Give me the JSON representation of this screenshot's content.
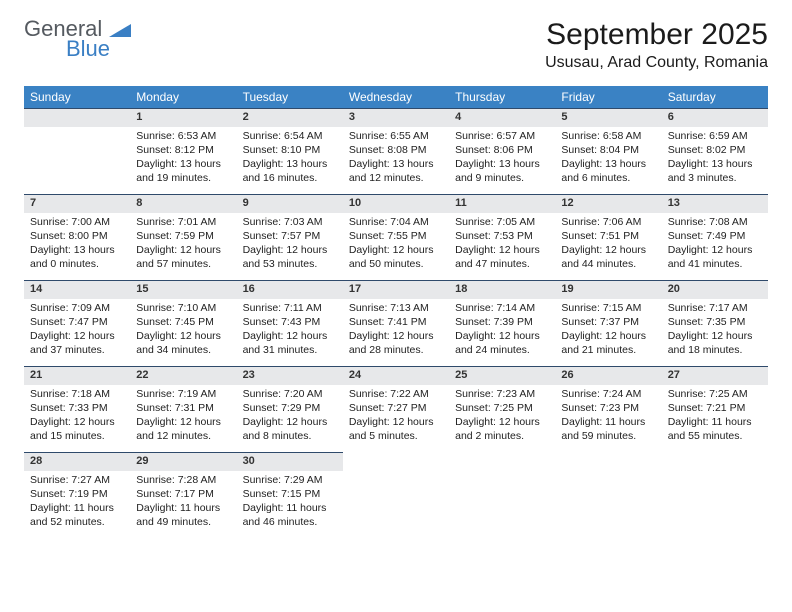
{
  "logo": {
    "general": "General",
    "blue": "Blue"
  },
  "title": "September 2025",
  "location": "Ususau, Arad County, Romania",
  "colors": {
    "header_bg": "#3a82c4",
    "header_fg": "#ffffff",
    "daynum_bg": "#e7e8ea",
    "row_divider": "#2f4a6b",
    "logo_gray": "#555a60",
    "logo_blue": "#3a7fc4"
  },
  "weekdays": [
    "Sunday",
    "Monday",
    "Tuesday",
    "Wednesday",
    "Thursday",
    "Friday",
    "Saturday"
  ],
  "weeks": [
    {
      "nums": [
        "",
        "1",
        "2",
        "3",
        "4",
        "5",
        "6"
      ],
      "cells": [
        null,
        {
          "sunrise": "Sunrise: 6:53 AM",
          "sunset": "Sunset: 8:12 PM",
          "day1": "Daylight: 13 hours",
          "day2": "and 19 minutes."
        },
        {
          "sunrise": "Sunrise: 6:54 AM",
          "sunset": "Sunset: 8:10 PM",
          "day1": "Daylight: 13 hours",
          "day2": "and 16 minutes."
        },
        {
          "sunrise": "Sunrise: 6:55 AM",
          "sunset": "Sunset: 8:08 PM",
          "day1": "Daylight: 13 hours",
          "day2": "and 12 minutes."
        },
        {
          "sunrise": "Sunrise: 6:57 AM",
          "sunset": "Sunset: 8:06 PM",
          "day1": "Daylight: 13 hours",
          "day2": "and 9 minutes."
        },
        {
          "sunrise": "Sunrise: 6:58 AM",
          "sunset": "Sunset: 8:04 PM",
          "day1": "Daylight: 13 hours",
          "day2": "and 6 minutes."
        },
        {
          "sunrise": "Sunrise: 6:59 AM",
          "sunset": "Sunset: 8:02 PM",
          "day1": "Daylight: 13 hours",
          "day2": "and 3 minutes."
        }
      ]
    },
    {
      "nums": [
        "7",
        "8",
        "9",
        "10",
        "11",
        "12",
        "13"
      ],
      "cells": [
        {
          "sunrise": "Sunrise: 7:00 AM",
          "sunset": "Sunset: 8:00 PM",
          "day1": "Daylight: 13 hours",
          "day2": "and 0 minutes."
        },
        {
          "sunrise": "Sunrise: 7:01 AM",
          "sunset": "Sunset: 7:59 PM",
          "day1": "Daylight: 12 hours",
          "day2": "and 57 minutes."
        },
        {
          "sunrise": "Sunrise: 7:03 AM",
          "sunset": "Sunset: 7:57 PM",
          "day1": "Daylight: 12 hours",
          "day2": "and 53 minutes."
        },
        {
          "sunrise": "Sunrise: 7:04 AM",
          "sunset": "Sunset: 7:55 PM",
          "day1": "Daylight: 12 hours",
          "day2": "and 50 minutes."
        },
        {
          "sunrise": "Sunrise: 7:05 AM",
          "sunset": "Sunset: 7:53 PM",
          "day1": "Daylight: 12 hours",
          "day2": "and 47 minutes."
        },
        {
          "sunrise": "Sunrise: 7:06 AM",
          "sunset": "Sunset: 7:51 PM",
          "day1": "Daylight: 12 hours",
          "day2": "and 44 minutes."
        },
        {
          "sunrise": "Sunrise: 7:08 AM",
          "sunset": "Sunset: 7:49 PM",
          "day1": "Daylight: 12 hours",
          "day2": "and 41 minutes."
        }
      ]
    },
    {
      "nums": [
        "14",
        "15",
        "16",
        "17",
        "18",
        "19",
        "20"
      ],
      "cells": [
        {
          "sunrise": "Sunrise: 7:09 AM",
          "sunset": "Sunset: 7:47 PM",
          "day1": "Daylight: 12 hours",
          "day2": "and 37 minutes."
        },
        {
          "sunrise": "Sunrise: 7:10 AM",
          "sunset": "Sunset: 7:45 PM",
          "day1": "Daylight: 12 hours",
          "day2": "and 34 minutes."
        },
        {
          "sunrise": "Sunrise: 7:11 AM",
          "sunset": "Sunset: 7:43 PM",
          "day1": "Daylight: 12 hours",
          "day2": "and 31 minutes."
        },
        {
          "sunrise": "Sunrise: 7:13 AM",
          "sunset": "Sunset: 7:41 PM",
          "day1": "Daylight: 12 hours",
          "day2": "and 28 minutes."
        },
        {
          "sunrise": "Sunrise: 7:14 AM",
          "sunset": "Sunset: 7:39 PM",
          "day1": "Daylight: 12 hours",
          "day2": "and 24 minutes."
        },
        {
          "sunrise": "Sunrise: 7:15 AM",
          "sunset": "Sunset: 7:37 PM",
          "day1": "Daylight: 12 hours",
          "day2": "and 21 minutes."
        },
        {
          "sunrise": "Sunrise: 7:17 AM",
          "sunset": "Sunset: 7:35 PM",
          "day1": "Daylight: 12 hours",
          "day2": "and 18 minutes."
        }
      ]
    },
    {
      "nums": [
        "21",
        "22",
        "23",
        "24",
        "25",
        "26",
        "27"
      ],
      "cells": [
        {
          "sunrise": "Sunrise: 7:18 AM",
          "sunset": "Sunset: 7:33 PM",
          "day1": "Daylight: 12 hours",
          "day2": "and 15 minutes."
        },
        {
          "sunrise": "Sunrise: 7:19 AM",
          "sunset": "Sunset: 7:31 PM",
          "day1": "Daylight: 12 hours",
          "day2": "and 12 minutes."
        },
        {
          "sunrise": "Sunrise: 7:20 AM",
          "sunset": "Sunset: 7:29 PM",
          "day1": "Daylight: 12 hours",
          "day2": "and 8 minutes."
        },
        {
          "sunrise": "Sunrise: 7:22 AM",
          "sunset": "Sunset: 7:27 PM",
          "day1": "Daylight: 12 hours",
          "day2": "and 5 minutes."
        },
        {
          "sunrise": "Sunrise: 7:23 AM",
          "sunset": "Sunset: 7:25 PM",
          "day1": "Daylight: 12 hours",
          "day2": "and 2 minutes."
        },
        {
          "sunrise": "Sunrise: 7:24 AM",
          "sunset": "Sunset: 7:23 PM",
          "day1": "Daylight: 11 hours",
          "day2": "and 59 minutes."
        },
        {
          "sunrise": "Sunrise: 7:25 AM",
          "sunset": "Sunset: 7:21 PM",
          "day1": "Daylight: 11 hours",
          "day2": "and 55 minutes."
        }
      ]
    },
    {
      "nums": [
        "28",
        "29",
        "30",
        "",
        "",
        "",
        ""
      ],
      "cells": [
        {
          "sunrise": "Sunrise: 7:27 AM",
          "sunset": "Sunset: 7:19 PM",
          "day1": "Daylight: 11 hours",
          "day2": "and 52 minutes."
        },
        {
          "sunrise": "Sunrise: 7:28 AM",
          "sunset": "Sunset: 7:17 PM",
          "day1": "Daylight: 11 hours",
          "day2": "and 49 minutes."
        },
        {
          "sunrise": "Sunrise: 7:29 AM",
          "sunset": "Sunset: 7:15 PM",
          "day1": "Daylight: 11 hours",
          "day2": "and 46 minutes."
        },
        null,
        null,
        null,
        null
      ]
    }
  ]
}
